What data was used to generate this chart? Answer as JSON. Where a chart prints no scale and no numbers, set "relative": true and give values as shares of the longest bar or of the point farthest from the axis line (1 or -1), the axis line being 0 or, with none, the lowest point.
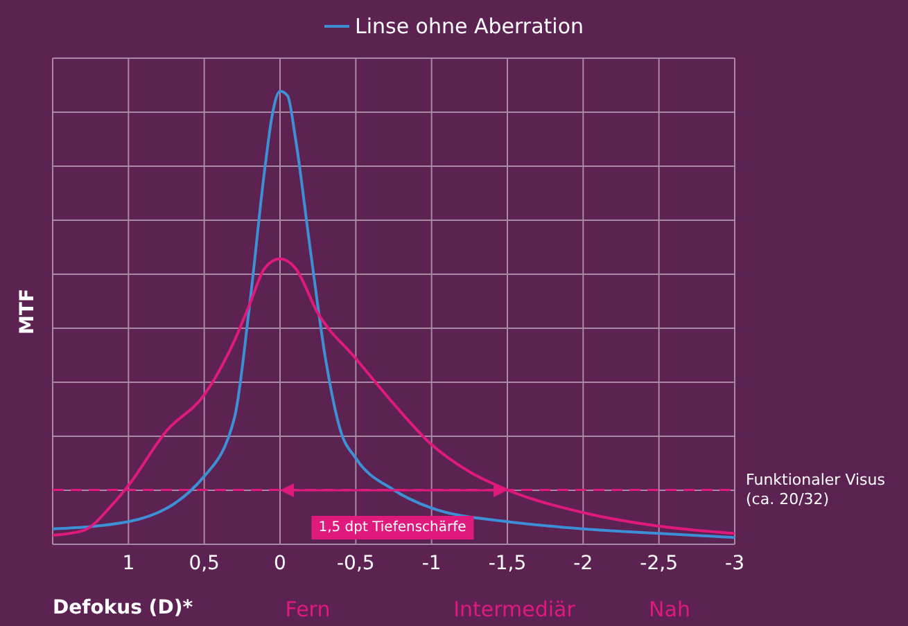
{
  "chart_data": {
    "type": "line",
    "relative": true,
    "ylabel": "MTF",
    "xlabel": "Defokus (D)*",
    "xlim": [
      1.5,
      -3
    ],
    "xticks": [
      {
        "value": 1.5,
        "label": null
      },
      1,
      {
        "value": 0.5,
        "label": "0,5"
      },
      0,
      {
        "value": -0.5,
        "label": "-0,5"
      },
      -1,
      {
        "value": -1.5,
        "label": "-1,5"
      },
      -2,
      {
        "value": -2.5,
        "label": "-2,5"
      },
      -3
    ],
    "grid": true,
    "legend": "top",
    "line_style": "solid",
    "marker": "none",
    "series": [
      {
        "name": "Linse ohne Aberration",
        "color": "#3d8fd6",
        "x": [
          1.5,
          1,
          0.5,
          0.3,
          0.2,
          0.1,
          0.05,
          0,
          -0.05,
          -0.1,
          -0.2,
          -0.3,
          -0.4,
          -0.5,
          -0.75,
          -1,
          -1.5,
          -2,
          -2.5,
          -3
        ],
        "values": [
          0.034,
          0.05,
          0.15,
          0.28,
          0.53,
          0.83,
          0.95,
          1,
          0.99,
          0.9,
          0.65,
          0.41,
          0.25,
          0.19,
          0.12,
          0.08,
          0.05,
          0.034,
          0.024,
          0.015
        ]
      },
      {
        "color": "#e0197d",
        "x": [
          1.5,
          1.3,
          1.1,
          1,
          0.75,
          0.5,
          0.3,
          0.2,
          0.1,
          0,
          -0.1,
          -0.25,
          -0.5,
          -0.75,
          -1,
          -1.25,
          -1.5,
          -2,
          -2.5,
          -3
        ],
        "values": [
          0.02,
          0.03,
          0.09,
          0.13,
          0.25,
          0.33,
          0.45,
          0.53,
          0.61,
          0.63,
          0.61,
          0.51,
          0.41,
          0.31,
          0.22,
          0.16,
          0.12,
          0.07,
          0.04,
          0.024
        ]
      }
    ],
    "ref_lines": [
      {
        "axis": "y",
        "value": 0.12,
        "label": "Funktionaler Visus (ca. 20/32)",
        "color": "#e0197d",
        "line_style": "dashed"
      }
    ],
    "annotations": [
      "Fern",
      "Intermediär",
      "Nah",
      "1,5 dpt Tiefenschärfe"
    ]
  }
}
